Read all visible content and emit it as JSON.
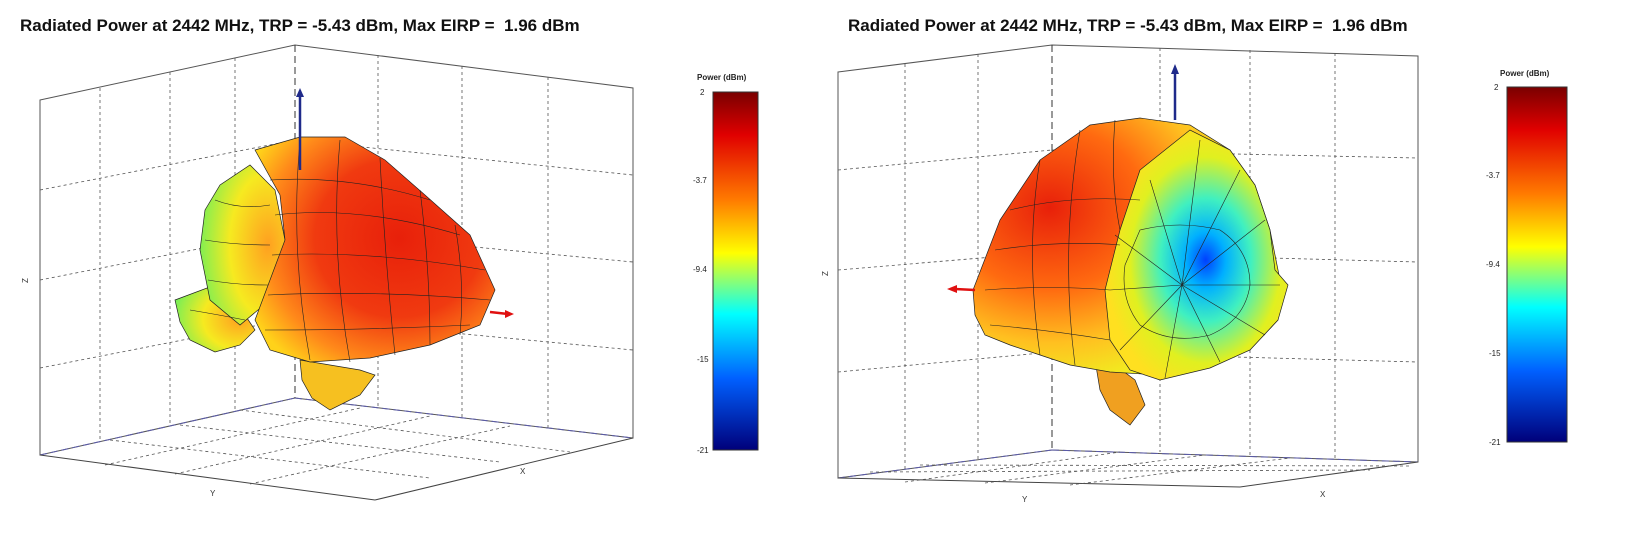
{
  "chart_data": [
    {
      "type": "3d-radiation-pattern",
      "title": "Radiated Power at 2442 MHz, TRP = -5.43 dBm, Max EIRP =  1.96 dBm",
      "frequency_mhz": 2442,
      "trp_dbm": -5.43,
      "max_eirp_dbm": 1.96,
      "axes": {
        "x": "X",
        "y": "Y",
        "z": "Z"
      },
      "colorbar": {
        "title": "Power (dBm)",
        "ticks": [
          "2",
          "-3.7",
          "-9.4",
          "-15",
          "-21"
        ],
        "range": [
          -21,
          2
        ],
        "colormap": "jet"
      },
      "view": "front-oblique",
      "grid": true
    },
    {
      "type": "3d-radiation-pattern",
      "title": "Radiated Power at 2442 MHz, TRP = -5.43 dBm, Max EIRP =  1.96 dBm",
      "frequency_mhz": 2442,
      "trp_dbm": -5.43,
      "max_eirp_dbm": 1.96,
      "axes": {
        "x": "X",
        "y": "Y",
        "z": "Z"
      },
      "colorbar": {
        "title": "Power (dBm)",
        "ticks": [
          "2",
          "-3.7",
          "-9.4",
          "-15",
          "-21"
        ],
        "range": [
          -21,
          2
        ],
        "colormap": "jet"
      },
      "view": "rotated",
      "grid": true
    }
  ],
  "colors": {
    "max": "#c00000",
    "high": "#ff4000",
    "mid": "#ffff00",
    "low": "#00ffff",
    "min": "#00008b",
    "arrow_z": "#1f2a8a",
    "arrow_x": "#e01010"
  }
}
